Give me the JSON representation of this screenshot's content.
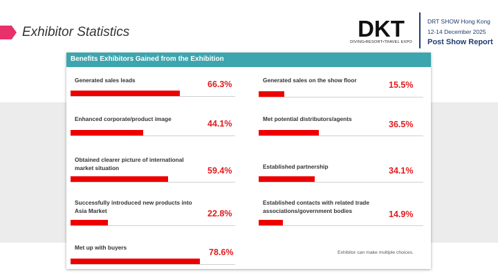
{
  "header": {
    "section_title": "Exhibitor Statistics",
    "logo_text": "DKT",
    "logo_tagline": "DIVING•RESORT•TRAVEL EXPO",
    "show_name": "DRT SHOW Hong Kong",
    "show_dates": "12-14 December 2025",
    "report_title": "Post Show Report"
  },
  "colors": {
    "accent": "#3da5ad",
    "bar": "#ee0000",
    "pct_text": "#e31a1c",
    "brand_navy": "#1f3b6e",
    "tab_pink": "#e8306a"
  },
  "chart_data": {
    "type": "bar",
    "orientation": "horizontal",
    "title": "Benefits Exhibitors Gained from the Exhibition",
    "unit": "%",
    "xlim": [
      0,
      100
    ],
    "categories": [
      "Generated sales leads",
      "Generated sales on the show floor",
      "Enhanced corporate/product image",
      "Met potential distributors/agents",
      "Obtained clearer picture of international market situation",
      "Established partnership",
      "Successfully introduced new products into Asia Market",
      "Established contacts with related trade associations/government bodies",
      "Met up with buyers"
    ],
    "values": [
      66.3,
      15.5,
      44.1,
      36.5,
      59.4,
      34.1,
      22.8,
      14.9,
      78.6
    ],
    "labels": [
      "66.3%",
      "15.5%",
      "44.1%",
      "36.5%",
      "59.4%",
      "34.1%",
      "22.8%",
      "14.9%",
      "78.6%"
    ],
    "note": "Exhibitor can make multiple choices."
  }
}
